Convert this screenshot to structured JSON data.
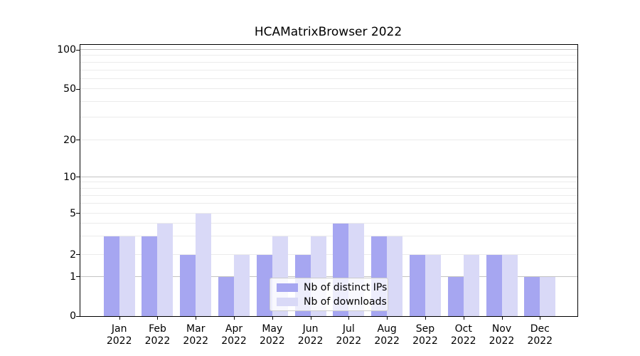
{
  "chart_data": {
    "type": "bar",
    "title": "HCAMatrixBrowser 2022",
    "categories": [
      "Jan",
      "Feb",
      "Mar",
      "Apr",
      "May",
      "Jun",
      "Jul",
      "Aug",
      "Sep",
      "Oct",
      "Nov",
      "Dec"
    ],
    "category_year": "2022",
    "series": [
      {
        "name": "Nb of distinct IPs",
        "color": "#a6a6f1",
        "values": [
          3,
          3,
          2,
          1,
          2,
          2,
          4,
          3,
          2,
          1,
          2,
          1
        ]
      },
      {
        "name": "Nb of downloads",
        "color": "#d9d9f7",
        "values": [
          3,
          4,
          5,
          2,
          3,
          3,
          4,
          3,
          2,
          2,
          2,
          1
        ]
      }
    ],
    "yscale": "asinh",
    "y_ticks": [
      0,
      1,
      2,
      5,
      10,
      20,
      50,
      100
    ],
    "ylim": [
      0,
      110
    ],
    "grid": true,
    "legend_position": "lower center",
    "grid_major_color": "#c3c3c3",
    "grid_minor_color": "#ebebeb"
  }
}
